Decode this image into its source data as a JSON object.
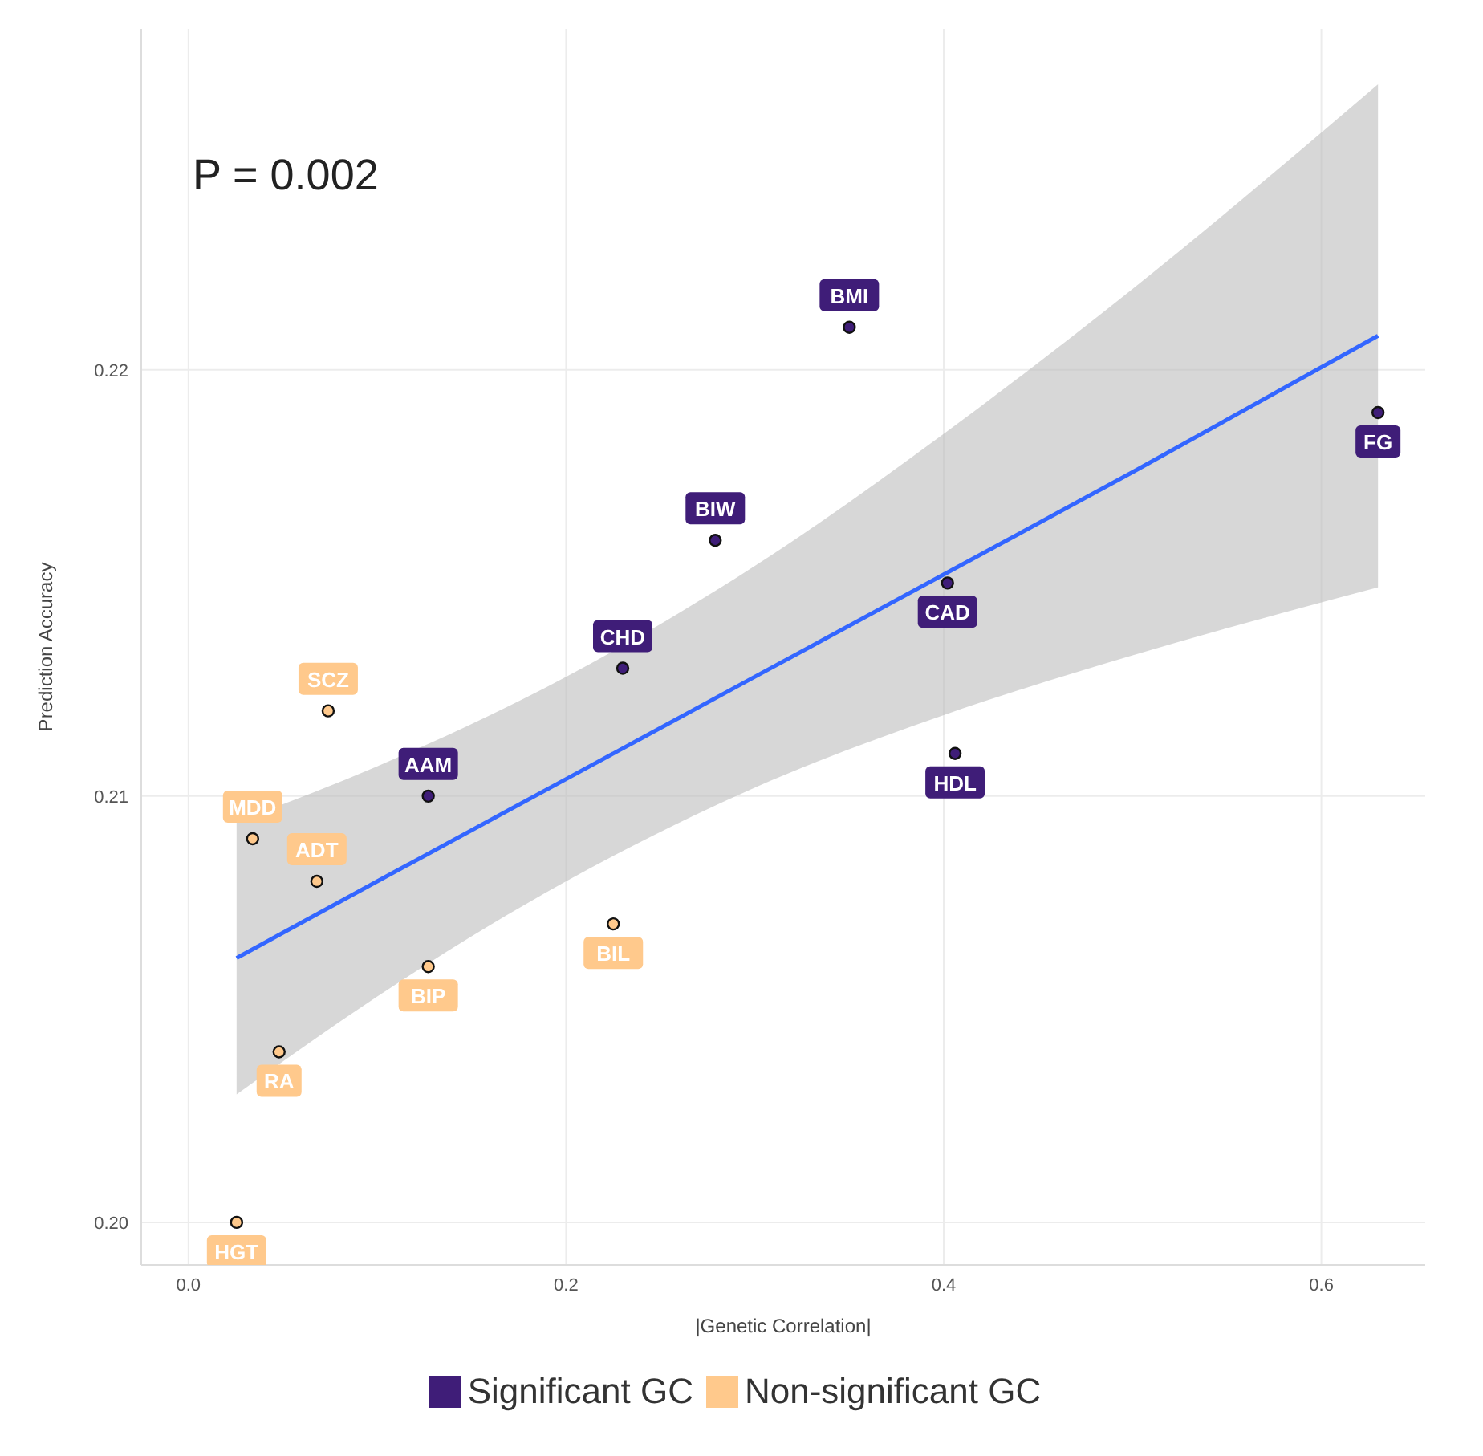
{
  "chart_data": {
    "type": "scatter",
    "xlabel": "|Genetic Correlation|",
    "ylabel": "Prediction Accuracy",
    "xlim": [
      -0.025,
      0.655
    ],
    "ylim": [
      0.199,
      0.228
    ],
    "xticks": [
      {
        "value": 0,
        "label": "0.0"
      },
      {
        "value": 0.2,
        "label": "0.2"
      },
      {
        "value": 0.4,
        "label": "0.4"
      },
      {
        "value": 0.6,
        "label": "0.6"
      }
    ],
    "yticks": [
      {
        "value": 0.2,
        "label": "0.20"
      },
      {
        "value": 0.21,
        "label": "0.21"
      },
      {
        "value": 0.22,
        "label": "0.22"
      }
    ],
    "grid": true,
    "legend": "bottom",
    "series": [
      {
        "name": "Significant GC",
        "color": "#3f1d78",
        "marker": "circle",
        "x": [
          0.127,
          0.23,
          0.279,
          0.35,
          0.402,
          0.406,
          0.63
        ],
        "values": [
          0.21,
          0.213,
          0.216,
          0.221,
          0.215,
          0.211,
          0.219
        ]
      },
      {
        "name": "Non-significant GC",
        "color": "#ffc98c",
        "marker": "circle",
        "x": [
          0.0255,
          0.048,
          0.034,
          0.068,
          0.074,
          0.127,
          0.225
        ],
        "values": [
          0.2,
          0.204,
          0.209,
          0.208,
          0.212,
          0.206,
          0.207
        ]
      },
      {
        "type": "line",
        "color": "#3366ff",
        "x": [
          0.0255,
          0.1,
          0.2,
          0.3,
          0.4,
          0.5,
          0.63
        ],
        "values": [
          0.2062,
          0.208,
          0.2104,
          0.2128,
          0.2152,
          0.2176,
          0.2208
        ],
        "lower": [
          0.203,
          0.2053,
          0.208,
          0.2102,
          0.2119,
          0.2133,
          0.2149
        ],
        "upper": [
          0.2094,
          0.2107,
          0.2128,
          0.2154,
          0.2185,
          0.2219,
          0.2267
        ]
      }
    ],
    "annotations": [
      "P = 0.002",
      {
        "text": "AAM",
        "x": 0.127,
        "y": 0.21
      },
      {
        "text": "CHD",
        "x": 0.23,
        "y": 0.213
      },
      {
        "text": "BIW",
        "x": 0.279,
        "y": 0.216
      },
      {
        "text": "BMI",
        "x": 0.35,
        "y": 0.221
      },
      {
        "text": "CAD",
        "x": 0.402,
        "y": 0.215
      },
      {
        "text": "HDL",
        "x": 0.406,
        "y": 0.211
      },
      {
        "text": "FG",
        "x": 0.63,
        "y": 0.219
      },
      {
        "text": "HGT",
        "x": 0.0255,
        "y": 0.2
      },
      {
        "text": "RA",
        "x": 0.048,
        "y": 0.204
      },
      {
        "text": "MDD",
        "x": 0.034,
        "y": 0.209
      },
      {
        "text": "ADT",
        "x": 0.068,
        "y": 0.208
      },
      {
        "text": "SCZ",
        "x": 0.074,
        "y": 0.212
      },
      {
        "text": "BIP",
        "x": 0.127,
        "y": 0.206
      },
      {
        "text": "BIL",
        "x": 0.225,
        "y": 0.207
      }
    ]
  }
}
